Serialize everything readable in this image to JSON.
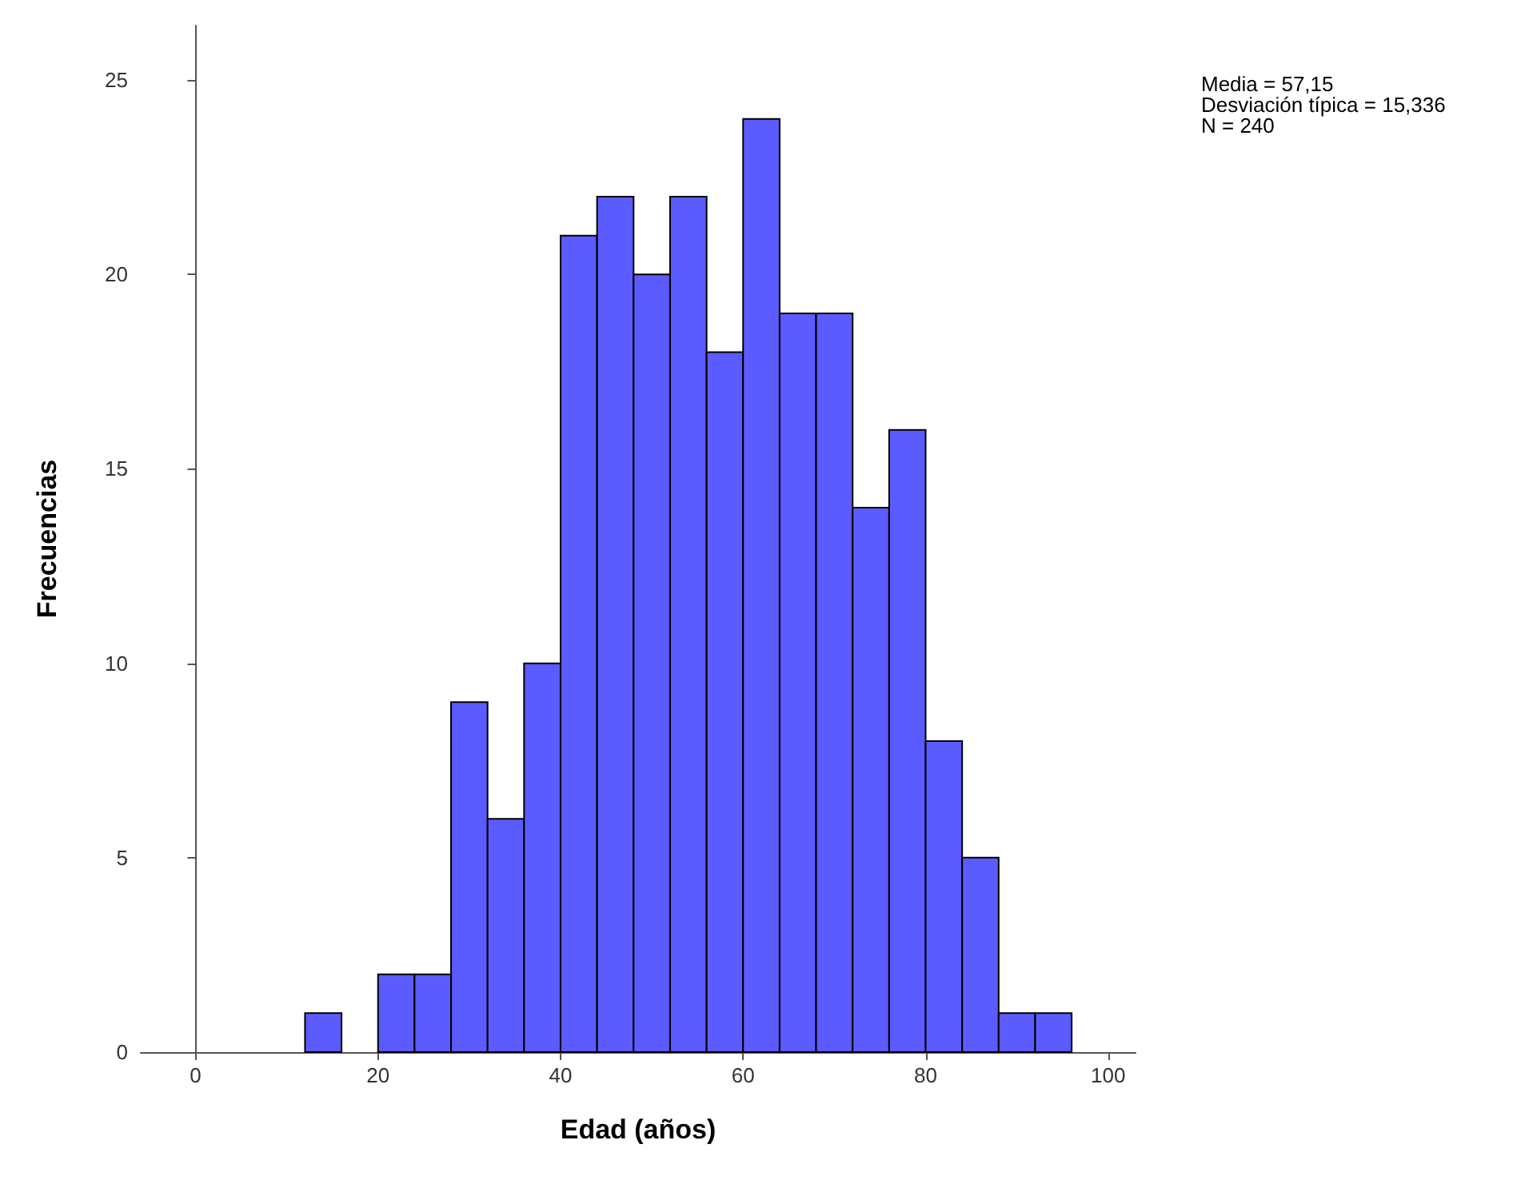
{
  "chart_data": {
    "type": "histogram",
    "xlabel": "Edad (años)",
    "ylabel": "Frecuencias",
    "bins": [
      12,
      16,
      20,
      24,
      28,
      32,
      36,
      40,
      44,
      48,
      52,
      56,
      60,
      64,
      68,
      72,
      76,
      80,
      84,
      88,
      92,
      96
    ],
    "values": [
      1,
      0,
      2,
      2,
      9,
      6,
      10,
      21,
      22,
      20,
      22,
      18,
      24,
      19,
      19,
      14,
      16,
      8,
      5,
      1,
      1
    ],
    "color": "#5b5bff",
    "xlim": [
      -6,
      103
    ],
    "xticks": [
      0,
      20,
      40,
      60,
      80,
      100
    ],
    "ylim": [
      0,
      26.4
    ],
    "yticks": [
      0,
      5,
      10,
      15,
      20,
      25
    ],
    "annotations": [
      "Media = 57,15",
      "Desviación típica = 15,336",
      "N = 240"
    ]
  }
}
